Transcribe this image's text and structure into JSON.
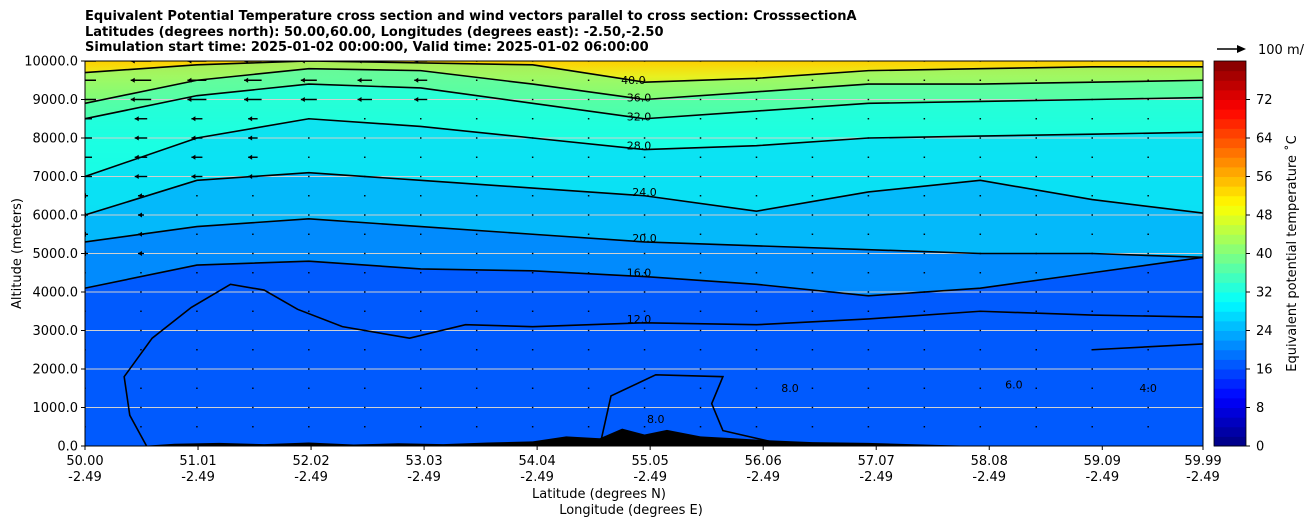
{
  "title": {
    "line1": "Equivalent Potential Temperature cross section and wind vectors parallel to cross section: CrosssectionA",
    "line2": "Latitudes (degrees north): 50.00,60.00, Longitudes (degrees east): -2.50,-2.50",
    "line3": "Simulation start time: 2025-01-02 00:00:00, Valid time: 2025-01-02 06:00:00"
  },
  "quiver_key_label": "100 m/",
  "chart_data": {
    "type": "contour",
    "ylabel": "Altitude (meters)",
    "xlabel_line1": "Latitude (degrees N)",
    "xlabel_line2": "Longitude (degrees E)",
    "ylim": [
      0,
      10000
    ],
    "xlim": [
      50.0,
      59.99
    ],
    "y_ticks": [
      0,
      1000,
      2000,
      3000,
      4000,
      5000,
      6000,
      7000,
      8000,
      9000,
      10000
    ],
    "y_tick_labels": [
      "0.0",
      "1000.0",
      "2000.0",
      "3000.0",
      "4000.0",
      "5000.0",
      "6000.0",
      "7000.0",
      "8000.0",
      "9000.0",
      "10000.0"
    ],
    "x_ticks": [
      50.0,
      51.01,
      52.02,
      53.03,
      54.04,
      55.05,
      56.06,
      57.07,
      58.08,
      59.09,
      59.99
    ],
    "x_tick_labels_lat": [
      "50.00",
      "51.01",
      "52.02",
      "53.03",
      "54.04",
      "55.05",
      "56.06",
      "57.07",
      "58.08",
      "59.09",
      "59.99"
    ],
    "x_tick_labels_lon": [
      "-2.49",
      "-2.49",
      "-2.49",
      "-2.49",
      "-2.49",
      "-2.49",
      "-2.49",
      "-2.49",
      "-2.49",
      "-2.49",
      "-2.49"
    ],
    "grid": "horizontal",
    "colorbar": {
      "label": "Equivalent potential temperature ˚C",
      "min": 0,
      "max": 80,
      "ticks": [
        0,
        8,
        16,
        24,
        32,
        40,
        48,
        56,
        64,
        72
      ],
      "colormap": "jet"
    },
    "contour_labels": [
      {
        "value": "40.0",
        "x": 54.9,
        "y": 9400
      },
      {
        "value": "36.0",
        "x": 54.95,
        "y": 8950
      },
      {
        "value": "32.0",
        "x": 54.95,
        "y": 8450
      },
      {
        "value": "28.0",
        "x": 54.95,
        "y": 7700
      },
      {
        "value": "24.0",
        "x": 55.0,
        "y": 6500
      },
      {
        "value": "20.0",
        "x": 55.0,
        "y": 5300
      },
      {
        "value": "16.0",
        "x": 54.95,
        "y": 4400
      },
      {
        "value": "12.0",
        "x": 54.95,
        "y": 3200
      },
      {
        "value": "8.0",
        "x": 55.1,
        "y": 600
      },
      {
        "value": "8.0",
        "x": 56.3,
        "y": 1400
      },
      {
        "value": "6.0",
        "x": 58.3,
        "y": 1500
      },
      {
        "value": "4.0",
        "x": 59.5,
        "y": 1400
      }
    ],
    "contours": [
      {
        "level": 40,
        "points": [
          [
            50.0,
            9700
          ],
          [
            51.0,
            9900
          ],
          [
            52.0,
            10000
          ],
          [
            54.0,
            9900
          ],
          [
            55.0,
            9450
          ],
          [
            56.0,
            9550
          ],
          [
            57.0,
            9750
          ],
          [
            58.0,
            9800
          ],
          [
            59.0,
            9850
          ],
          [
            59.99,
            9850
          ]
        ]
      },
      {
        "level": 36,
        "points": [
          [
            50.0,
            8900
          ],
          [
            51.0,
            9500
          ],
          [
            52.0,
            9800
          ],
          [
            53.0,
            9750
          ],
          [
            54.0,
            9400
          ],
          [
            55.0,
            9000
          ],
          [
            56.0,
            9200
          ],
          [
            57.0,
            9400
          ],
          [
            58.0,
            9400
          ],
          [
            59.0,
            9450
          ],
          [
            59.99,
            9500
          ]
        ]
      },
      {
        "level": 32,
        "points": [
          [
            50.0,
            8500
          ],
          [
            51.0,
            9100
          ],
          [
            52.0,
            9400
          ],
          [
            53.0,
            9300
          ],
          [
            54.0,
            8900
          ],
          [
            55.0,
            8500
          ],
          [
            56.0,
            8700
          ],
          [
            57.0,
            8900
          ],
          [
            58.0,
            8950
          ],
          [
            59.0,
            9000
          ],
          [
            59.99,
            9050
          ]
        ]
      },
      {
        "level": 28,
        "points": [
          [
            50.0,
            7000
          ],
          [
            51.0,
            8000
          ],
          [
            52.0,
            8500
          ],
          [
            53.0,
            8300
          ],
          [
            54.0,
            8000
          ],
          [
            55.0,
            7700
          ],
          [
            56.0,
            7800
          ],
          [
            57.0,
            8000
          ],
          [
            58.0,
            8050
          ],
          [
            59.0,
            8100
          ],
          [
            59.99,
            8150
          ]
        ]
      },
      {
        "level": 24,
        "points": [
          [
            50.0,
            6000
          ],
          [
            51.0,
            6900
          ],
          [
            52.0,
            7100
          ],
          [
            53.0,
            6900
          ],
          [
            54.0,
            6700
          ],
          [
            55.0,
            6500
          ],
          [
            56.0,
            6100
          ],
          [
            57.0,
            6600
          ],
          [
            58.0,
            6900
          ],
          [
            59.0,
            6400
          ],
          [
            59.99,
            6050
          ]
        ]
      },
      {
        "level": 20,
        "points": [
          [
            50.0,
            5300
          ],
          [
            51.0,
            5700
          ],
          [
            52.0,
            5900
          ],
          [
            53.0,
            5700
          ],
          [
            54.0,
            5500
          ],
          [
            55.0,
            5300
          ],
          [
            56.0,
            5200
          ],
          [
            57.0,
            5100
          ],
          [
            58.0,
            5000
          ],
          [
            59.0,
            5000
          ],
          [
            59.99,
            4900
          ]
        ]
      },
      {
        "level": 16,
        "points": [
          [
            50.0,
            4100
          ],
          [
            51.0,
            4700
          ],
          [
            52.0,
            4800
          ],
          [
            53.0,
            4600
          ],
          [
            54.0,
            4550
          ],
          [
            55.0,
            4400
          ],
          [
            56.0,
            4200
          ],
          [
            57.0,
            3900
          ],
          [
            58.0,
            4100
          ],
          [
            59.0,
            4500
          ],
          [
            59.99,
            4900
          ]
        ]
      },
      {
        "level": 12,
        "points": [
          [
            50.55,
            0
          ],
          [
            50.4,
            800
          ],
          [
            50.35,
            1800
          ],
          [
            50.6,
            2800
          ],
          [
            50.95,
            3600
          ],
          [
            51.3,
            4200
          ],
          [
            51.6,
            4050
          ],
          [
            51.9,
            3550
          ],
          [
            52.3,
            3100
          ],
          [
            52.9,
            2800
          ],
          [
            53.4,
            3150
          ],
          [
            54.0,
            3100
          ],
          [
            55.0,
            3200
          ],
          [
            56.0,
            3150
          ],
          [
            57.0,
            3300
          ],
          [
            58.0,
            3500
          ],
          [
            59.0,
            3400
          ],
          [
            59.99,
            3350
          ]
        ]
      },
      {
        "level": 8,
        "points": [
          [
            54.6,
            0
          ],
          [
            54.7,
            1300
          ],
          [
            55.1,
            1850
          ],
          [
            55.7,
            1800
          ],
          [
            55.6,
            1100
          ],
          [
            55.7,
            400
          ],
          [
            56.3,
            0
          ]
        ]
      },
      {
        "level": 4,
        "points": [
          [
            59.0,
            2500
          ],
          [
            59.99,
            2650
          ]
        ]
      }
    ],
    "wind_arrow_rows_m": [
      10000,
      9500,
      9000,
      8500,
      8000,
      7500,
      7000,
      6500,
      6000,
      5500,
      5000,
      4500,
      4000,
      3500,
      3000,
      2500,
      2000,
      1500,
      1000,
      500
    ],
    "quiver_reference_ms": 100,
    "terrain_max_m": 500
  }
}
